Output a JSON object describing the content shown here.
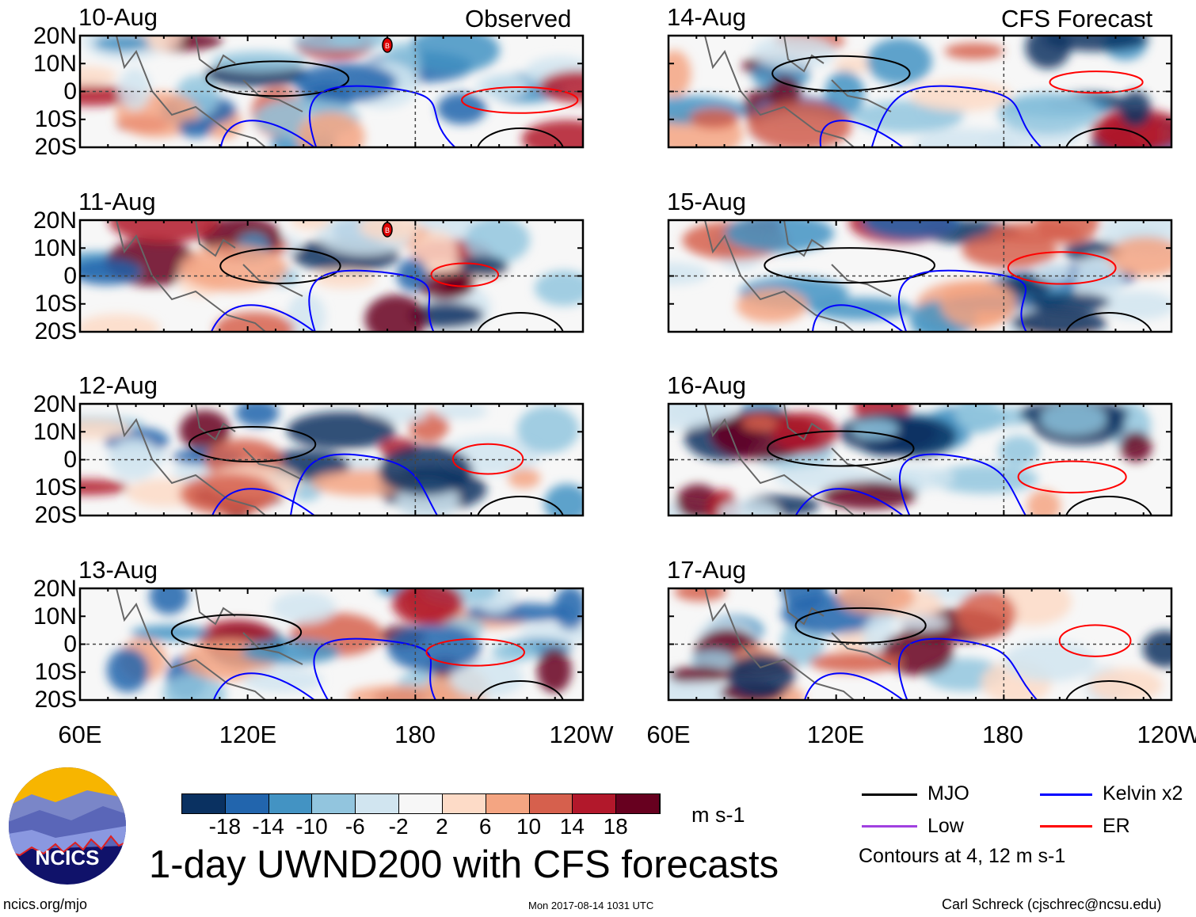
{
  "title": "1-day UWND200 with CFS forecasts",
  "columns": [
    {
      "header": "Observed",
      "panels": [
        "10-Aug",
        "11-Aug",
        "12-Aug",
        "13-Aug"
      ]
    },
    {
      "header": "CFS Forecast",
      "panels": [
        "14-Aug",
        "15-Aug",
        "16-Aug",
        "17-Aug"
      ]
    }
  ],
  "lat_ticks": [
    "20N",
    "10N",
    "0",
    "10S",
    "20S"
  ],
  "lon_ticks_left": [
    "60E",
    "120E",
    "180",
    "120W"
  ],
  "lon_ticks_right": [
    "60E",
    "120E",
    "180",
    "120W"
  ],
  "storm_marker_label": "B",
  "colorbar": {
    "colors": [
      "#0a3161",
      "#2265ad",
      "#4393c3",
      "#92c5de",
      "#d1e5f0",
      "#f7f7f7",
      "#fddbc7",
      "#f4a582",
      "#d6604d",
      "#b2182b",
      "#67001f"
    ],
    "labels": [
      "-18",
      "-14",
      "-10",
      "-6",
      "-2",
      "2",
      "6",
      "10",
      "14",
      "18"
    ],
    "units": "m s-1"
  },
  "legend": {
    "items": [
      {
        "label": "MJO",
        "color": "#000000"
      },
      {
        "label": "Kelvin x2",
        "color": "#0000ff"
      },
      {
        "label": "Low",
        "color": "#a040e0"
      },
      {
        "label": "ER",
        "color": "#ff0000"
      }
    ],
    "note": "Contours at 4, 12 m s-1"
  },
  "logo_text": "NCICS",
  "footer": {
    "left": "ncics.org/mjo",
    "center": "Mon 2017-08-14 1031 UTC",
    "right": "Carl Schreck (cjschrec@ncsu.edu)"
  }
}
